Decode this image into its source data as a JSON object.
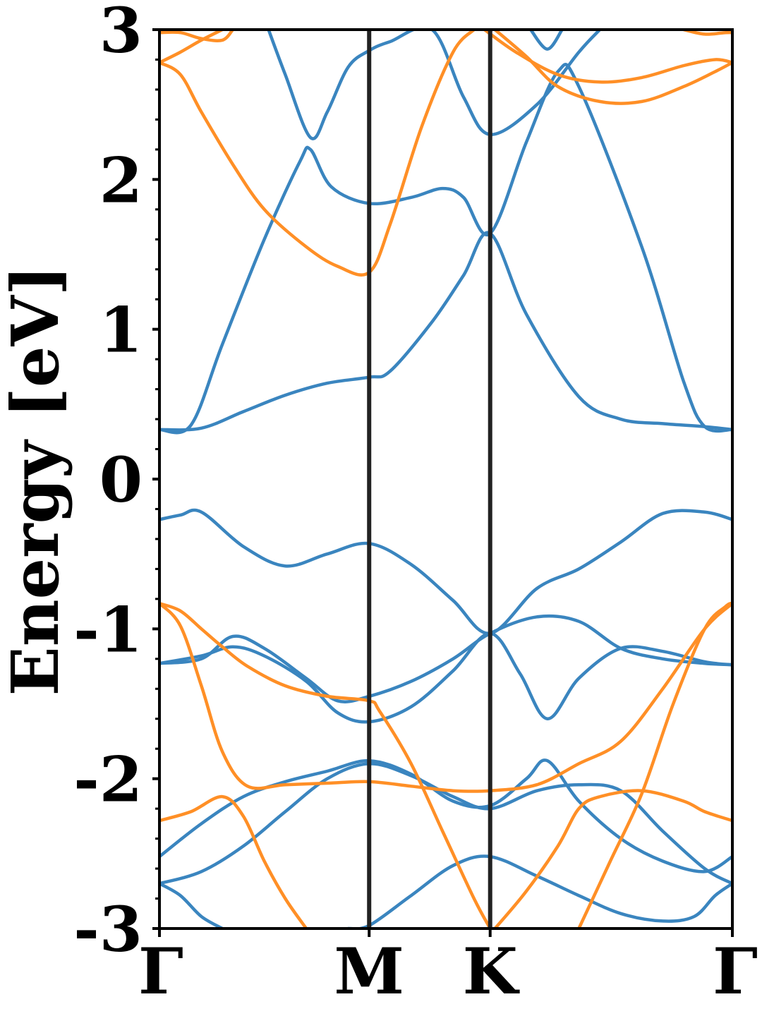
{
  "chart_data": {
    "type": "line",
    "title": "",
    "ylabel": "Energy [eV]",
    "xlabel": "",
    "ylim": [
      -3,
      3
    ],
    "yticks": [
      -3,
      -2,
      -1,
      0,
      1,
      2,
      3
    ],
    "yticks_minor_step": 0.2,
    "x_range": [
      0,
      2.732
    ],
    "high_symmetry_points": [
      {
        "label": "Γ",
        "x": 0
      },
      {
        "label": "M",
        "x": 1.0
      },
      {
        "label": "K",
        "x": 1.577
      },
      {
        "label": "Γ",
        "x": 2.732
      }
    ],
    "vertical_lines_at": [
      1.0,
      1.577
    ],
    "grid": false,
    "legend": "none",
    "colors": {
      "blue_bands": "#3a85bf",
      "orange_bands": "#ff8f26",
      "symmetry_lines": "#222222"
    },
    "series": [
      {
        "color": "blue",
        "x": [
          0,
          0.2,
          0.4,
          0.6,
          0.8,
          1.0,
          1.1,
          1.3,
          1.45,
          1.577,
          1.75,
          2.0,
          2.2,
          2.4,
          2.6,
          2.732
        ],
        "y": [
          0.33,
          0.34,
          0.45,
          0.56,
          0.64,
          0.68,
          0.72,
          1.05,
          1.36,
          1.64,
          1.1,
          0.55,
          0.4,
          0.37,
          0.35,
          0.33
        ]
      },
      {
        "color": "blue",
        "x": [
          0,
          0.15,
          0.3,
          0.5,
          0.67,
          0.72,
          0.82,
          1.0,
          1.2,
          1.35,
          1.45,
          1.577,
          1.75,
          1.9,
          2.0,
          2.3,
          2.5,
          2.6,
          2.732
        ],
        "y": [
          0.33,
          0.36,
          0.9,
          1.6,
          2.12,
          2.2,
          1.95,
          1.84,
          1.88,
          1.94,
          1.88,
          1.64,
          2.25,
          2.72,
          2.62,
          1.55,
          0.65,
          0.35,
          0.33
        ]
      },
      {
        "color": "blue",
        "x": [
          0.52,
          0.6,
          0.72,
          0.8,
          0.9,
          1.0,
          1.1,
          1.3,
          1.45,
          1.577,
          1.8,
          2.0,
          2.1
        ],
        "y": [
          3.0,
          2.7,
          2.28,
          2.45,
          2.75,
          2.86,
          2.92,
          3.0,
          2.55,
          2.3,
          2.5,
          2.85,
          3.0
        ]
      },
      {
        "color": "blue",
        "x": [
          1.77,
          1.85,
          1.92
        ],
        "y": [
          3.0,
          2.87,
          3.0
        ]
      },
      {
        "color": "blue",
        "x": [
          0,
          0.1,
          0.2,
          0.4,
          0.6,
          0.8,
          1.0,
          1.2,
          1.4,
          1.577,
          1.8,
          2.0,
          2.2,
          2.4,
          2.6,
          2.732
        ],
        "y": [
          -0.27,
          -0.24,
          -0.22,
          -0.45,
          -0.58,
          -0.5,
          -0.43,
          -0.57,
          -0.81,
          -1.03,
          -0.73,
          -0.6,
          -0.42,
          -0.23,
          -0.22,
          -0.27
        ]
      },
      {
        "color": "blue",
        "x": [
          0,
          0.2,
          0.35,
          0.5,
          0.7,
          0.85,
          1.0,
          1.2,
          1.4,
          1.577,
          1.8,
          2.0,
          2.2,
          2.4,
          2.6,
          2.732
        ],
        "y": [
          -1.23,
          -1.2,
          -1.05,
          -1.13,
          -1.33,
          -1.48,
          -1.45,
          -1.35,
          -1.2,
          -1.03,
          -0.92,
          -0.95,
          -1.13,
          -1.2,
          -1.23,
          -1.24
        ]
      },
      {
        "color": "blue",
        "x": [
          0,
          0.2,
          0.35,
          0.5,
          0.7,
          0.85,
          1.0,
          1.2,
          1.4,
          1.577,
          1.72,
          1.85,
          2.0,
          2.2,
          2.4,
          2.6,
          2.732
        ],
        "y": [
          -1.23,
          -1.18,
          -1.12,
          -1.18,
          -1.35,
          -1.56,
          -1.62,
          -1.52,
          -1.28,
          -1.03,
          -1.3,
          -1.6,
          -1.33,
          -1.13,
          -1.15,
          -1.22,
          -1.24
        ]
      },
      {
        "color": "blue",
        "x": [
          0,
          0.2,
          0.4,
          0.6,
          0.8,
          1.0,
          1.2,
          1.4,
          1.577,
          1.75,
          1.85,
          2.0,
          2.2,
          2.4,
          2.6,
          2.732
        ],
        "y": [
          -2.52,
          -2.3,
          -2.12,
          -2.02,
          -1.95,
          -1.88,
          -1.97,
          -2.15,
          -2.18,
          -2.0,
          -1.88,
          -2.15,
          -2.4,
          -2.55,
          -2.62,
          -2.52
        ]
      },
      {
        "color": "blue",
        "x": [
          0,
          0.2,
          0.4,
          0.6,
          0.8,
          1.0,
          1.2,
          1.4,
          1.577,
          1.8,
          2.0,
          2.2,
          2.4,
          2.6,
          2.732
        ],
        "y": [
          -2.7,
          -2.62,
          -2.45,
          -2.22,
          -2.0,
          -1.9,
          -1.98,
          -2.12,
          -2.2,
          -2.08,
          -2.04,
          -2.08,
          -2.35,
          -2.6,
          -2.7
        ]
      },
      {
        "color": "blue",
        "x": [
          0,
          0.1,
          0.2,
          0.3
        ],
        "y": [
          -2.7,
          -2.78,
          -2.92,
          -3.0
        ]
      },
      {
        "color": "blue",
        "x": [
          0.9,
          1.0,
          1.2,
          1.4,
          1.577,
          1.8,
          2.0,
          2.2,
          2.4,
          2.55,
          2.65,
          2.732
        ],
        "y": [
          -3.0,
          -2.98,
          -2.78,
          -2.58,
          -2.52,
          -2.65,
          -2.78,
          -2.9,
          -2.95,
          -2.92,
          -2.78,
          -2.7
        ]
      },
      {
        "color": "orange",
        "x": [
          0,
          0.1,
          0.2,
          0.3
        ],
        "y": [
          2.78,
          2.85,
          2.93,
          3.0
        ]
      },
      {
        "color": "orange",
        "x": [
          0,
          0.1,
          0.2,
          0.3,
          0.35
        ],
        "y": [
          2.98,
          2.98,
          2.94,
          2.93,
          3.0
        ]
      },
      {
        "color": "orange",
        "x": [
          0,
          0.1,
          0.2,
          0.35,
          0.5,
          0.7,
          0.85,
          1.0,
          1.1,
          1.25,
          1.4,
          1.5
        ],
        "y": [
          2.78,
          2.7,
          2.45,
          2.1,
          1.8,
          1.55,
          1.42,
          1.38,
          1.7,
          2.35,
          2.85,
          3.0
        ]
      },
      {
        "color": "orange",
        "x": [
          1.55,
          1.7,
          1.9,
          2.1,
          2.3,
          2.5,
          2.65,
          2.732
        ],
        "y": [
          3.0,
          2.85,
          2.7,
          2.65,
          2.68,
          2.76,
          2.8,
          2.78
        ]
      },
      {
        "color": "orange",
        "x": [
          1.6,
          1.75,
          1.9,
          2.1,
          2.3,
          2.5,
          2.65,
          2.732
        ],
        "y": [
          3.0,
          2.82,
          2.62,
          2.52,
          2.52,
          2.62,
          2.72,
          2.78
        ]
      },
      {
        "color": "orange",
        "x": [
          2.5,
          2.6,
          2.7,
          2.732
        ],
        "y": [
          3.0,
          2.97,
          2.98,
          2.98
        ]
      },
      {
        "color": "orange",
        "x": [
          0,
          0.1,
          0.2,
          0.3,
          0.42,
          0.6,
          0.8,
          1.0,
          1.05,
          1.2,
          1.35,
          1.5,
          1.577
        ],
        "y": [
          -0.83,
          -0.88,
          -1.0,
          -1.12,
          -1.25,
          -1.38,
          -1.45,
          -1.48,
          -1.55,
          -1.9,
          -2.35,
          -2.8,
          -3.0
        ]
      },
      {
        "color": "orange",
        "x": [
          0,
          0.1,
          0.2,
          0.3,
          0.42,
          0.6,
          0.8,
          1.0,
          1.2,
          1.4,
          1.577,
          1.8,
          2.0,
          2.2,
          2.4,
          2.6,
          2.732
        ],
        "y": [
          -0.83,
          -0.98,
          -1.38,
          -1.82,
          -2.05,
          -2.04,
          -2.03,
          -2.02,
          -2.05,
          -2.08,
          -2.08,
          -2.04,
          -1.9,
          -1.75,
          -1.4,
          -1.0,
          -0.83
        ]
      },
      {
        "color": "orange",
        "x": [
          0,
          0.15,
          0.3,
          0.4,
          0.5,
          0.6,
          0.7
        ],
        "y": [
          -2.28,
          -2.22,
          -2.12,
          -2.25,
          -2.55,
          -2.8,
          -3.0
        ]
      },
      {
        "color": "orange",
        "x": [
          1.6,
          1.75,
          1.9,
          2.0,
          2.1,
          2.3,
          2.5,
          2.6,
          2.732
        ],
        "y": [
          -3.0,
          -2.75,
          -2.45,
          -2.2,
          -2.12,
          -2.08,
          -2.15,
          -2.22,
          -2.28
        ]
      },
      {
        "color": "orange",
        "x": [
          2.0,
          2.15,
          2.3,
          2.45,
          2.6,
          2.7,
          2.732
        ],
        "y": [
          -3.0,
          -2.55,
          -2.1,
          -1.5,
          -1.0,
          -0.85,
          -0.83
        ]
      }
    ]
  }
}
